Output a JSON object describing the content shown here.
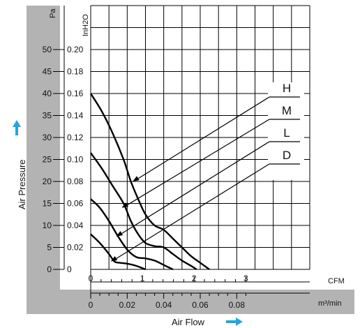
{
  "chart_data": {
    "type": "line",
    "title": "",
    "xlabel": "Air Flow",
    "ylabel": "Air Pressure",
    "x_unit_primary": "m³/min",
    "x_unit_secondary": "CFM",
    "y_unit_primary": "Pa",
    "y_unit_secondary": "InH2O",
    "xlim": [
      0,
      0.12
    ],
    "ylim": [
      0,
      60
    ],
    "x_ticks": [
      {
        "value": 0,
        "label": "0"
      },
      {
        "value": 0.02,
        "label": "0.02"
      },
      {
        "value": 0.04,
        "label": "0.04"
      },
      {
        "value": 0.06,
        "label": "0.06"
      },
      {
        "value": 0.08,
        "label": "0.08"
      }
    ],
    "cfm_ticks": [
      {
        "value": 0,
        "label": "0"
      },
      {
        "value": 1,
        "label": "1"
      },
      {
        "value": 2,
        "label": "2"
      },
      {
        "value": 3,
        "label": "3"
      }
    ],
    "pa_ticks": [
      {
        "value": 0,
        "label": "0"
      },
      {
        "value": 5,
        "label": "5"
      },
      {
        "value": 10,
        "label": "10"
      },
      {
        "value": 15,
        "label": "15"
      },
      {
        "value": 20,
        "label": "20"
      },
      {
        "value": 25,
        "label": "25"
      },
      {
        "value": 30,
        "label": "30"
      },
      {
        "value": 35,
        "label": "35"
      },
      {
        "value": 40,
        "label": "40"
      },
      {
        "value": 45,
        "label": "45"
      },
      {
        "value": 50,
        "label": "50"
      }
    ],
    "inh2o_ticks": [
      {
        "value": 0,
        "label": "0"
      },
      {
        "value": 5,
        "label": "0.02"
      },
      {
        "value": 10,
        "label": "0.04"
      },
      {
        "value": 15,
        "label": "0.06"
      },
      {
        "value": 20,
        "label": "0.08"
      },
      {
        "value": 25,
        "label": "0.10"
      },
      {
        "value": 30,
        "label": "0.12"
      },
      {
        "value": 35,
        "label": "0.14"
      },
      {
        "value": 40,
        "label": "0.16"
      },
      {
        "value": 45,
        "label": "0.18"
      },
      {
        "value": 50,
        "label": "0.20"
      }
    ],
    "grid": true,
    "series": [
      {
        "name": "H",
        "points": [
          [
            0,
            40
          ],
          [
            0.006,
            36
          ],
          [
            0.012,
            31
          ],
          [
            0.018,
            25
          ],
          [
            0.022,
            20
          ],
          [
            0.026,
            16
          ],
          [
            0.03,
            12.5
          ],
          [
            0.035,
            10
          ],
          [
            0.04,
            9
          ],
          [
            0.045,
            7
          ],
          [
            0.05,
            5
          ],
          [
            0.055,
            3
          ],
          [
            0.06,
            1.5
          ],
          [
            0.065,
            0
          ]
        ]
      },
      {
        "name": "M",
        "points": [
          [
            0,
            26.5
          ],
          [
            0.006,
            23
          ],
          [
            0.012,
            19
          ],
          [
            0.018,
            15
          ],
          [
            0.022,
            11
          ],
          [
            0.026,
            8
          ],
          [
            0.03,
            6
          ],
          [
            0.035,
            5.3
          ],
          [
            0.04,
            5
          ],
          [
            0.045,
            3.5
          ],
          [
            0.05,
            2
          ],
          [
            0.055,
            0.8
          ],
          [
            0.058,
            0
          ]
        ]
      },
      {
        "name": "L",
        "points": [
          [
            0,
            16
          ],
          [
            0.005,
            14
          ],
          [
            0.01,
            11
          ],
          [
            0.015,
            7.5
          ],
          [
            0.02,
            4.5
          ],
          [
            0.025,
            2.8
          ],
          [
            0.03,
            2.5
          ],
          [
            0.035,
            2
          ],
          [
            0.04,
            1
          ],
          [
            0.045,
            0
          ]
        ]
      },
      {
        "name": "D",
        "points": [
          [
            0,
            8
          ],
          [
            0.005,
            6
          ],
          [
            0.01,
            3.5
          ],
          [
            0.013,
            1.8
          ],
          [
            0.016,
            1.5
          ],
          [
            0.02,
            1.3
          ],
          [
            0.025,
            0.8
          ],
          [
            0.03,
            0
          ]
        ]
      }
    ],
    "annotations": [
      {
        "label": "H",
        "target": [
          0.023,
          20
        ]
      },
      {
        "label": "M",
        "target": [
          0.017,
          14
        ]
      },
      {
        "label": "L",
        "target": [
          0.014,
          7.5
        ]
      },
      {
        "label": "D",
        "target": [
          0.011,
          1.8
        ]
      }
    ]
  },
  "colors": {
    "gray_band": "#b3b3b3",
    "grid": "#000000",
    "curve": "#000000",
    "arrow_blue": "#1fa6e0"
  }
}
